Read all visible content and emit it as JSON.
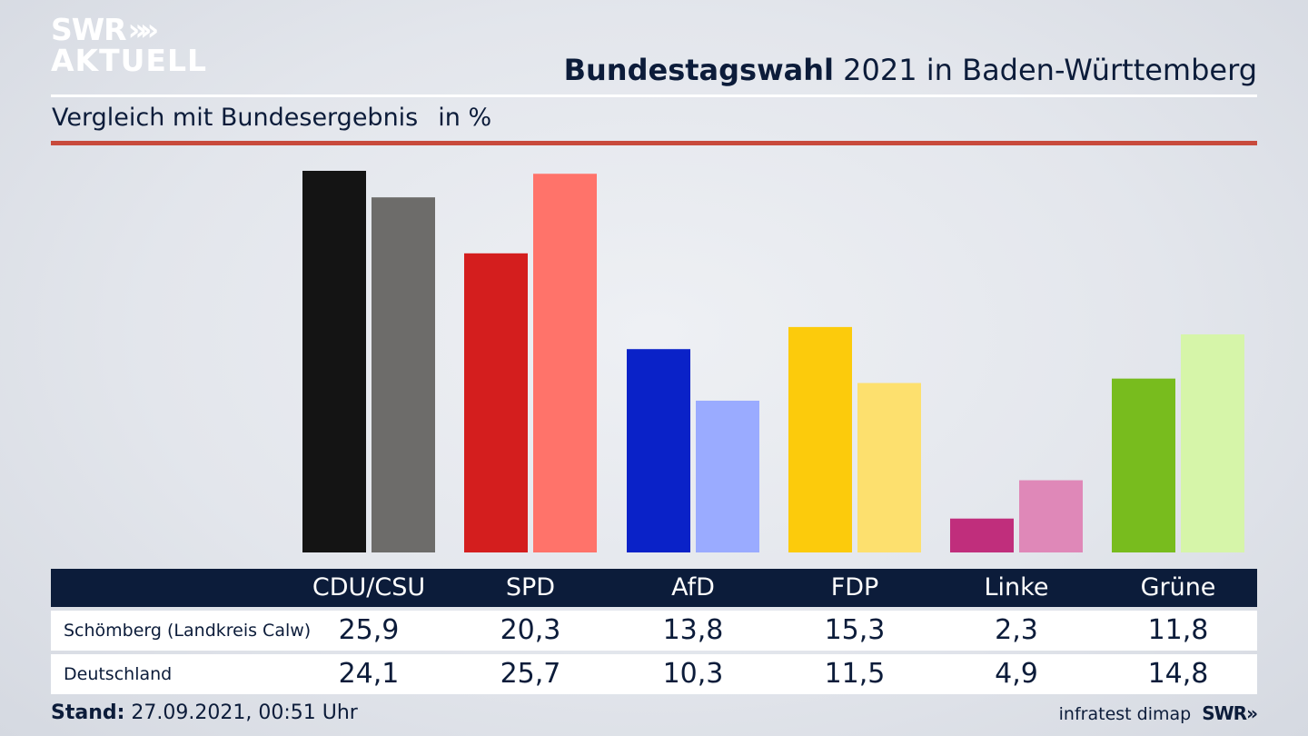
{
  "logo": {
    "line1": "SWR",
    "arrows": "»»",
    "line2": "AKTUELL",
    "text": "SWR AKTUELL"
  },
  "header": {
    "title_bold": "Bundestagswahl",
    "title_rest": " 2021 in Baden-Württemberg",
    "subtitle": "Vergleich mit Bundesergebnis",
    "unit": "in %"
  },
  "chart_data": {
    "type": "bar",
    "title": "Bundestagswahl 2021 in Baden-Württemberg",
    "subtitle": "Vergleich mit Bundesergebnis",
    "unit": "in %",
    "categories": [
      "CDU/CSU",
      "SPD",
      "AfD",
      "FDP",
      "Linke",
      "Grüne"
    ],
    "series": [
      {
        "name": "Schömberg (Landkreis Calw)",
        "values": [
          25.9,
          20.3,
          13.8,
          15.3,
          2.3,
          11.8
        ],
        "display": [
          "25,9",
          "20,3",
          "13,8",
          "15,3",
          "2,3",
          "11,8"
        ],
        "colors": [
          "#141414",
          "#d41e1e",
          "#0a22c8",
          "#fccb0c",
          "#c02e7c",
          "#78bc1e"
        ]
      },
      {
        "name": "Deutschland",
        "values": [
          24.1,
          25.7,
          10.3,
          11.5,
          4.9,
          14.8
        ],
        "display": [
          "24,1",
          "25,7",
          "10,3",
          "11,5",
          "4,9",
          "14,8"
        ],
        "colors": [
          "#6d6c6a",
          "#ff736a",
          "#9aabff",
          "#fde06e",
          "#df88b8",
          "#d6f5a9"
        ]
      }
    ],
    "ylim": [
      0,
      25.9
    ],
    "grid": false
  },
  "footer": {
    "stand_label": "Stand:",
    "stand_value": "27.09.2021, 00:51 Uhr",
    "source": "infratest dimap",
    "brand": "SWR",
    "brand_arrows": "»"
  }
}
